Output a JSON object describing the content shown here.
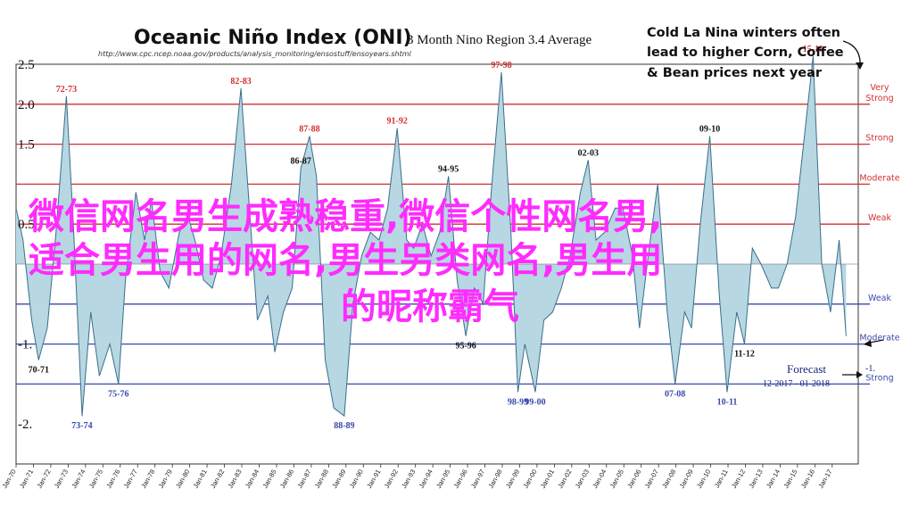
{
  "chart_data": {
    "type": "area",
    "title": "Oceanic Niño Index (ONI)",
    "subtitle": "3 Month Nino Region 3.4 Average",
    "source_url": "http://www.cpc.ncep.noaa.gov/products/analysis_monitoring/ensostuff/ensoyears.shtml",
    "ylim": [
      -2.5,
      2.5
    ],
    "xlim": [
      1970,
      2018.5
    ],
    "yticks": [
      "2.5",
      "2.0",
      "1.5",
      "0.5",
      "-1.",
      "-2."
    ],
    "ytick_values": [
      2.5,
      2.0,
      1.5,
      0.5,
      -1.0,
      -2.0
    ],
    "xtick_labels": [
      "Jan-70",
      "Jan-71",
      "Jan-72",
      "Jan-73",
      "Jan-74",
      "Jan-75",
      "Jan-76",
      "Jan-77",
      "Jan-78",
      "Jan-79",
      "Jan-80",
      "Jan-81",
      "Jan-82",
      "Jan-83",
      "Jan-84",
      "Jan-85",
      "Jan-86",
      "Jan-87",
      "Jan-88",
      "Jan-89",
      "Jan-90",
      "Jan-91",
      "Jan-92",
      "Jan-93",
      "Jan-94",
      "Jan-95",
      "Jan-96",
      "Jan-97",
      "Jan-98",
      "Jan-99",
      "Jan-00",
      "Jan-01",
      "Jan-02",
      "Jan-03",
      "Jan-04",
      "Jan-05",
      "Jan-06",
      "Jan-07",
      "Jan-08",
      "Jan-09",
      "Jan-10",
      "Jan-11",
      "Jan-12",
      "Jan-13",
      "Jan-14",
      "Jan-15",
      "Jan-16",
      "Jan-17"
    ],
    "thresholds": [
      {
        "label": "Very Strong",
        "value": 2.0,
        "color": "#d32f2f"
      },
      {
        "label": "Strong",
        "value": 1.5,
        "color": "#d32f2f"
      },
      {
        "label": "Moderate",
        "value": 1.0,
        "color": "#d32f2f"
      },
      {
        "label": "Weak",
        "value": 0.5,
        "color": "#d32f2f"
      },
      {
        "label": "Weak",
        "value": -0.5,
        "color": "#3949ab"
      },
      {
        "label": "Moderate",
        "value": -1.0,
        "color": "#3949ab"
      },
      {
        "label": "Strong",
        "value": -1.5,
        "color": "#3949ab"
      }
    ],
    "series": [
      {
        "x": [
          1970,
          1970.4,
          1970.9,
          1971.3,
          1971.8,
          1972.3,
          1972.9,
          1973.3,
          1973.8,
          1974.3,
          1974.8,
          1975.4,
          1975.9,
          1976.3,
          1976.9,
          1977.4,
          1977.8,
          1978.3,
          1978.8,
          1979.4,
          1979.9,
          1980.3,
          1980.8,
          1981.3,
          1981.8,
          1982.4,
          1982.95,
          1983.5,
          1983.9,
          1984.5,
          1984.9,
          1985.4,
          1985.9,
          1986.4,
          1986.9,
          1987.3,
          1987.8,
          1988.3,
          1988.9,
          1989.4,
          1989.9,
          1990.4,
          1990.9,
          1991.4,
          1991.95,
          1992.5,
          1992.9,
          1993.4,
          1993.9,
          1994.4,
          1994.9,
          1995.4,
          1995.9,
          1996.4,
          1996.9,
          1997.4,
          1997.95,
          1998.5,
          1998.9,
          1999.3,
          1999.9,
          2000.4,
          2000.9,
          2001.4,
          2001.9,
          2002.5,
          2002.95,
          2003.4,
          2003.9,
          2004.5,
          2004.95,
          2005.5,
          2005.9,
          2006.4,
          2006.95,
          2007.5,
          2007.95,
          2008.5,
          2008.9,
          2009.4,
          2009.95,
          2010.5,
          2010.95,
          2011.5,
          2011.95,
          2012.4,
          2012.9,
          2013.5,
          2013.9,
          2014.4,
          2014.9,
          2015.5,
          2015.9,
          2016.4,
          2016.9,
          2017.4,
          2017.8
        ],
        "values": [
          0.7,
          0.3,
          -0.7,
          -1.2,
          -0.8,
          0.4,
          2.1,
          0.5,
          -1.9,
          -0.6,
          -1.4,
          -1.0,
          -1.5,
          -0.2,
          0.9,
          0.3,
          0.8,
          -0.1,
          -0.3,
          0.4,
          0.6,
          0.3,
          -0.2,
          -0.3,
          0.1,
          1.0,
          2.2,
          0.5,
          -0.7,
          -0.4,
          -1.1,
          -0.6,
          -0.3,
          1.2,
          1.6,
          1.1,
          -1.2,
          -1.8,
          -1.9,
          -0.5,
          0.1,
          0.4,
          0.3,
          0.7,
          1.7,
          0.3,
          0.2,
          0.5,
          0.1,
          0.4,
          1.1,
          -0.2,
          -0.9,
          -0.3,
          -0.5,
          1.0,
          2.4,
          0.4,
          -1.6,
          -1.0,
          -1.6,
          -0.7,
          -0.6,
          -0.3,
          0.1,
          0.9,
          1.3,
          0.3,
          0.4,
          0.7,
          0.7,
          0.1,
          -0.8,
          0.1,
          1.0,
          -0.6,
          -1.5,
          -0.6,
          -0.8,
          0.5,
          1.6,
          -0.4,
          -1.6,
          -0.6,
          -1.0,
          0.2,
          0.0,
          -0.3,
          -0.3,
          0.0,
          0.6,
          1.8,
          2.6,
          0.0,
          -0.6,
          0.3,
          -0.9
        ]
      }
    ],
    "peak_labels": [
      {
        "text": "72-73",
        "x": 1972.9,
        "y": 2.1,
        "color": "#d32f2f"
      },
      {
        "text": "82-83",
        "x": 1982.95,
        "y": 2.2,
        "color": "#d32f2f"
      },
      {
        "text": "87-88",
        "x": 1986.9,
        "y": 1.6,
        "color": "#d32f2f"
      },
      {
        "text": "86-87",
        "x": 1986.4,
        "y": 1.2,
        "color": "#111111"
      },
      {
        "text": "91-92",
        "x": 1991.95,
        "y": 1.7,
        "color": "#d32f2f"
      },
      {
        "text": "94-95",
        "x": 1994.9,
        "y": 1.1,
        "color": "#111111"
      },
      {
        "text": "97-98",
        "x": 1997.95,
        "y": 2.4,
        "color": "#d32f2f"
      },
      {
        "text": "02-03",
        "x": 2002.95,
        "y": 1.3,
        "color": "#111111"
      },
      {
        "text": "09-10",
        "x": 2009.95,
        "y": 1.6,
        "color": "#111111"
      },
      {
        "text": "15-16",
        "x": 2015.9,
        "y": 2.6,
        "color": "#d32f2f"
      },
      {
        "text": "70-71",
        "x": 1971.3,
        "y": -1.2,
        "color": "#111111"
      },
      {
        "text": "73-74",
        "x": 1973.8,
        "y": -1.9,
        "color": "#3949ab"
      },
      {
        "text": "75-76",
        "x": 1975.9,
        "y": -1.5,
        "color": "#3949ab"
      },
      {
        "text": "88-89",
        "x": 1988.9,
        "y": -1.9,
        "color": "#3949ab"
      },
      {
        "text": "95-96",
        "x": 1995.9,
        "y": -0.9,
        "color": "#111111"
      },
      {
        "text": "98-99",
        "x": 1998.9,
        "y": -1.6,
        "color": "#3949ab"
      },
      {
        "text": "99-00",
        "x": 1999.9,
        "y": -1.6,
        "color": "#3949ab"
      },
      {
        "text": "07-08",
        "x": 2007.95,
        "y": -1.5,
        "color": "#3949ab"
      },
      {
        "text": "10-11",
        "x": 2010.95,
        "y": -1.6,
        "color": "#3949ab"
      },
      {
        "text": "11-12",
        "x": 2011.95,
        "y": -1.0,
        "color": "#111111"
      }
    ],
    "colors": {
      "fill": "#b7d7e3",
      "line": "#3a6e8a"
    }
  },
  "callout": {
    "lines": [
      "Cold La Nina winters often",
      "lead to higher Corn, Coffee",
      "& Bean prices next year"
    ]
  },
  "forecast": {
    "label": "Forecast",
    "range": "12-2017 - 01-2018",
    "value": "-1."
  },
  "overlay": {
    "lines": [
      "微信网名男生成熟稳重,微信个性网名男,",
      "适合男生用的网名,男生另类网名,男生用",
      "的昵称霸气"
    ]
  }
}
